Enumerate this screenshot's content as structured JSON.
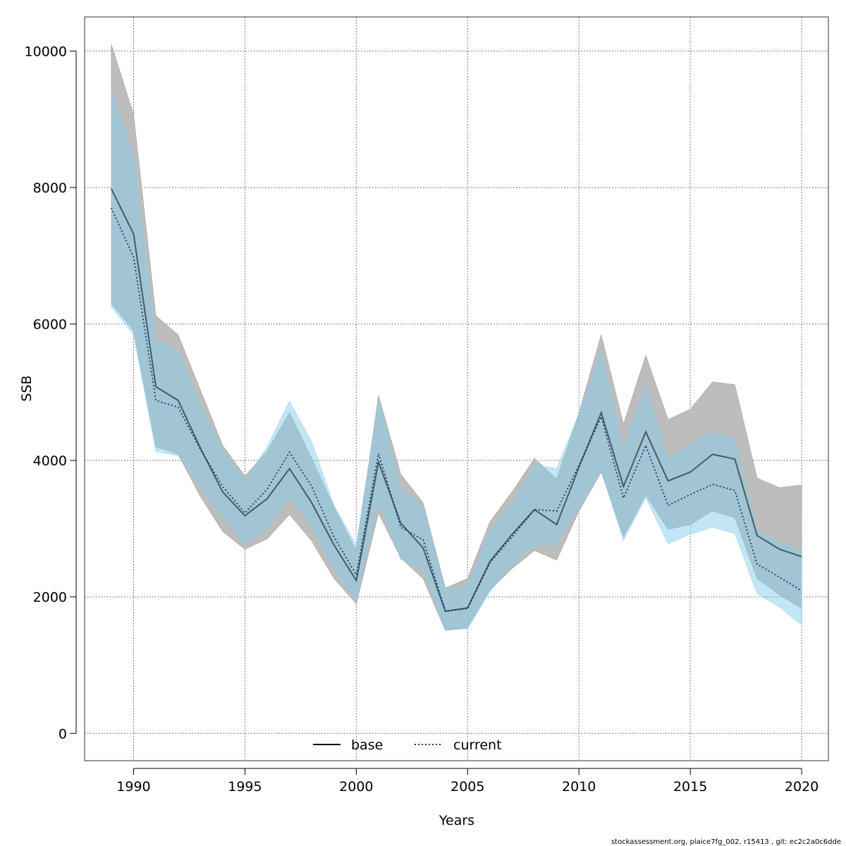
{
  "chart_data": {
    "type": "line",
    "xlabel": "Years",
    "ylabel": "SSB",
    "xlim": [
      1987.8,
      2021.2
    ],
    "ylim": [
      -400,
      10500
    ],
    "grid": true,
    "x_ticks": [
      1990,
      1995,
      2000,
      2005,
      2010,
      2015,
      2020
    ],
    "x_tick_labels": [
      "1990",
      "1995",
      "2000",
      "2005",
      "2010",
      "2015",
      "2020"
    ],
    "y_ticks": [
      0,
      2000,
      4000,
      6000,
      8000,
      10000
    ],
    "y_tick_labels": [
      "0",
      "2000",
      "4000",
      "6000",
      "8000",
      "10000"
    ],
    "legend": {
      "position": "bottom-center",
      "entries": [
        "base",
        "current"
      ]
    },
    "x": [
      1989,
      1990,
      1991,
      1992,
      1993,
      1994,
      1995,
      1996,
      1997,
      1998,
      1999,
      2000,
      2001,
      2002,
      2003,
      2004,
      2005,
      2006,
      2007,
      2008,
      2009,
      2010,
      2011,
      2012,
      2013,
      2014,
      2015,
      2016,
      2017,
      2018,
      2019,
      2020
    ],
    "series": [
      {
        "name": "base",
        "color": "#000000",
        "band_color": "#bdbdbd",
        "line_style": "solid",
        "values": [
          7980,
          7320,
          5080,
          4880,
          4180,
          3540,
          3190,
          3440,
          3880,
          3380,
          2760,
          2240,
          3980,
          3080,
          2720,
          1790,
          1840,
          2520,
          2920,
          3280,
          3060,
          3900,
          4700,
          3620,
          4420,
          3700,
          3830,
          4090,
          4020,
          2900,
          2700,
          2590
        ],
        "lower": [
          6300,
          5900,
          4200,
          4090,
          3470,
          2960,
          2700,
          2850,
          3210,
          2820,
          2270,
          1900,
          3230,
          2570,
          2270,
          1510,
          1540,
          2100,
          2420,
          2680,
          2540,
          3260,
          3830,
          2880,
          3490,
          2990,
          3060,
          3260,
          3160,
          2270,
          2030,
          1830
        ],
        "upper": [
          10100,
          9070,
          6120,
          5840,
          5030,
          4220,
          3770,
          4140,
          4700,
          4030,
          3320,
          2680,
          4950,
          3800,
          3380,
          2130,
          2270,
          3100,
          3540,
          4030,
          3730,
          4700,
          5840,
          4530,
          5540,
          4600,
          4750,
          5150,
          5110,
          3740,
          3600,
          3640
        ]
      },
      {
        "name": "current",
        "color": "#0d3b7a",
        "band_color": "#87ceeb",
        "line_style": "dotted",
        "values": [
          7700,
          6980,
          4880,
          4780,
          4160,
          3620,
          3230,
          3580,
          4120,
          3620,
          2880,
          2320,
          4100,
          3020,
          2840,
          1790,
          1830,
          2500,
          2880,
          3280,
          3260,
          3930,
          4640,
          3450,
          4220,
          3340,
          3500,
          3650,
          3560,
          2480,
          2290,
          2090
        ],
        "lower": [
          6250,
          5840,
          4130,
          4070,
          3620,
          3180,
          2760,
          3020,
          3460,
          3040,
          2400,
          1940,
          3390,
          2550,
          2410,
          1520,
          1540,
          2080,
          2470,
          2760,
          2770,
          3320,
          3840,
          2830,
          3450,
          2780,
          2920,
          3020,
          2930,
          2050,
          1850,
          1590
        ],
        "upper": [
          9420,
          8470,
          5760,
          5600,
          4810,
          4160,
          3710,
          4200,
          4870,
          4270,
          3340,
          2760,
          4900,
          3590,
          3330,
          2110,
          2170,
          2990,
          3370,
          3940,
          3880,
          4680,
          5610,
          4180,
          5100,
          4010,
          4240,
          4420,
          4300,
          2980,
          2800,
          2680
        ]
      }
    ]
  },
  "footnote": "stockassessment.org, plaice7fg_002, r15413 , git: ec2c2a0c6dde"
}
